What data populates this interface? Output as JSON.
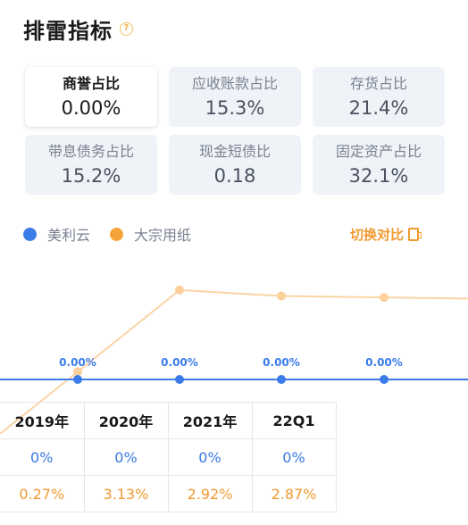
{
  "header": {
    "title": "排雷指标",
    "help_icon": "question-circle-icon"
  },
  "metrics": [
    {
      "label": "商誉占比",
      "value": "0.00%",
      "active": true
    },
    {
      "label": "应收账款占比",
      "value": "15.3%"
    },
    {
      "label": "存货占比",
      "value": "21.4%"
    },
    {
      "label": "带息债务占比",
      "value": "15.2%"
    },
    {
      "label": "现金短债比",
      "value": "0.18"
    },
    {
      "label": "固定资产占比",
      "value": "32.1%"
    }
  ],
  "legend": {
    "items": [
      {
        "label": "美利云",
        "color": "#3b7ce8"
      },
      {
        "label": "大宗用纸",
        "color": "#f6a43a"
      }
    ],
    "switch_label": "切换对比"
  },
  "chart_data": {
    "type": "line",
    "categories": [
      "2019年",
      "2020年",
      "2021年",
      "22Q1"
    ],
    "series": [
      {
        "name": "美利云",
        "color": "#3b7ce8",
        "values": [
          0,
          0,
          0,
          0
        ],
        "labels": [
          "0.00%",
          "0.00%",
          "0.00%",
          "0.00%"
        ]
      },
      {
        "name": "大宗用纸",
        "color": "#f6a43a",
        "values": [
          0.27,
          3.13,
          2.92,
          2.87
        ]
      }
    ]
  },
  "table": {
    "headers": [
      "2019年",
      "2020年",
      "2021年",
      "22Q1"
    ],
    "rows": [
      {
        "series": "美利云",
        "style": "blue",
        "cells": [
          "0%",
          "0%",
          "0%",
          "0%"
        ]
      },
      {
        "series": "大宗用纸",
        "style": "orange",
        "cells": [
          "0.27%",
          "3.13%",
          "2.92%",
          "2.87%"
        ]
      }
    ]
  }
}
